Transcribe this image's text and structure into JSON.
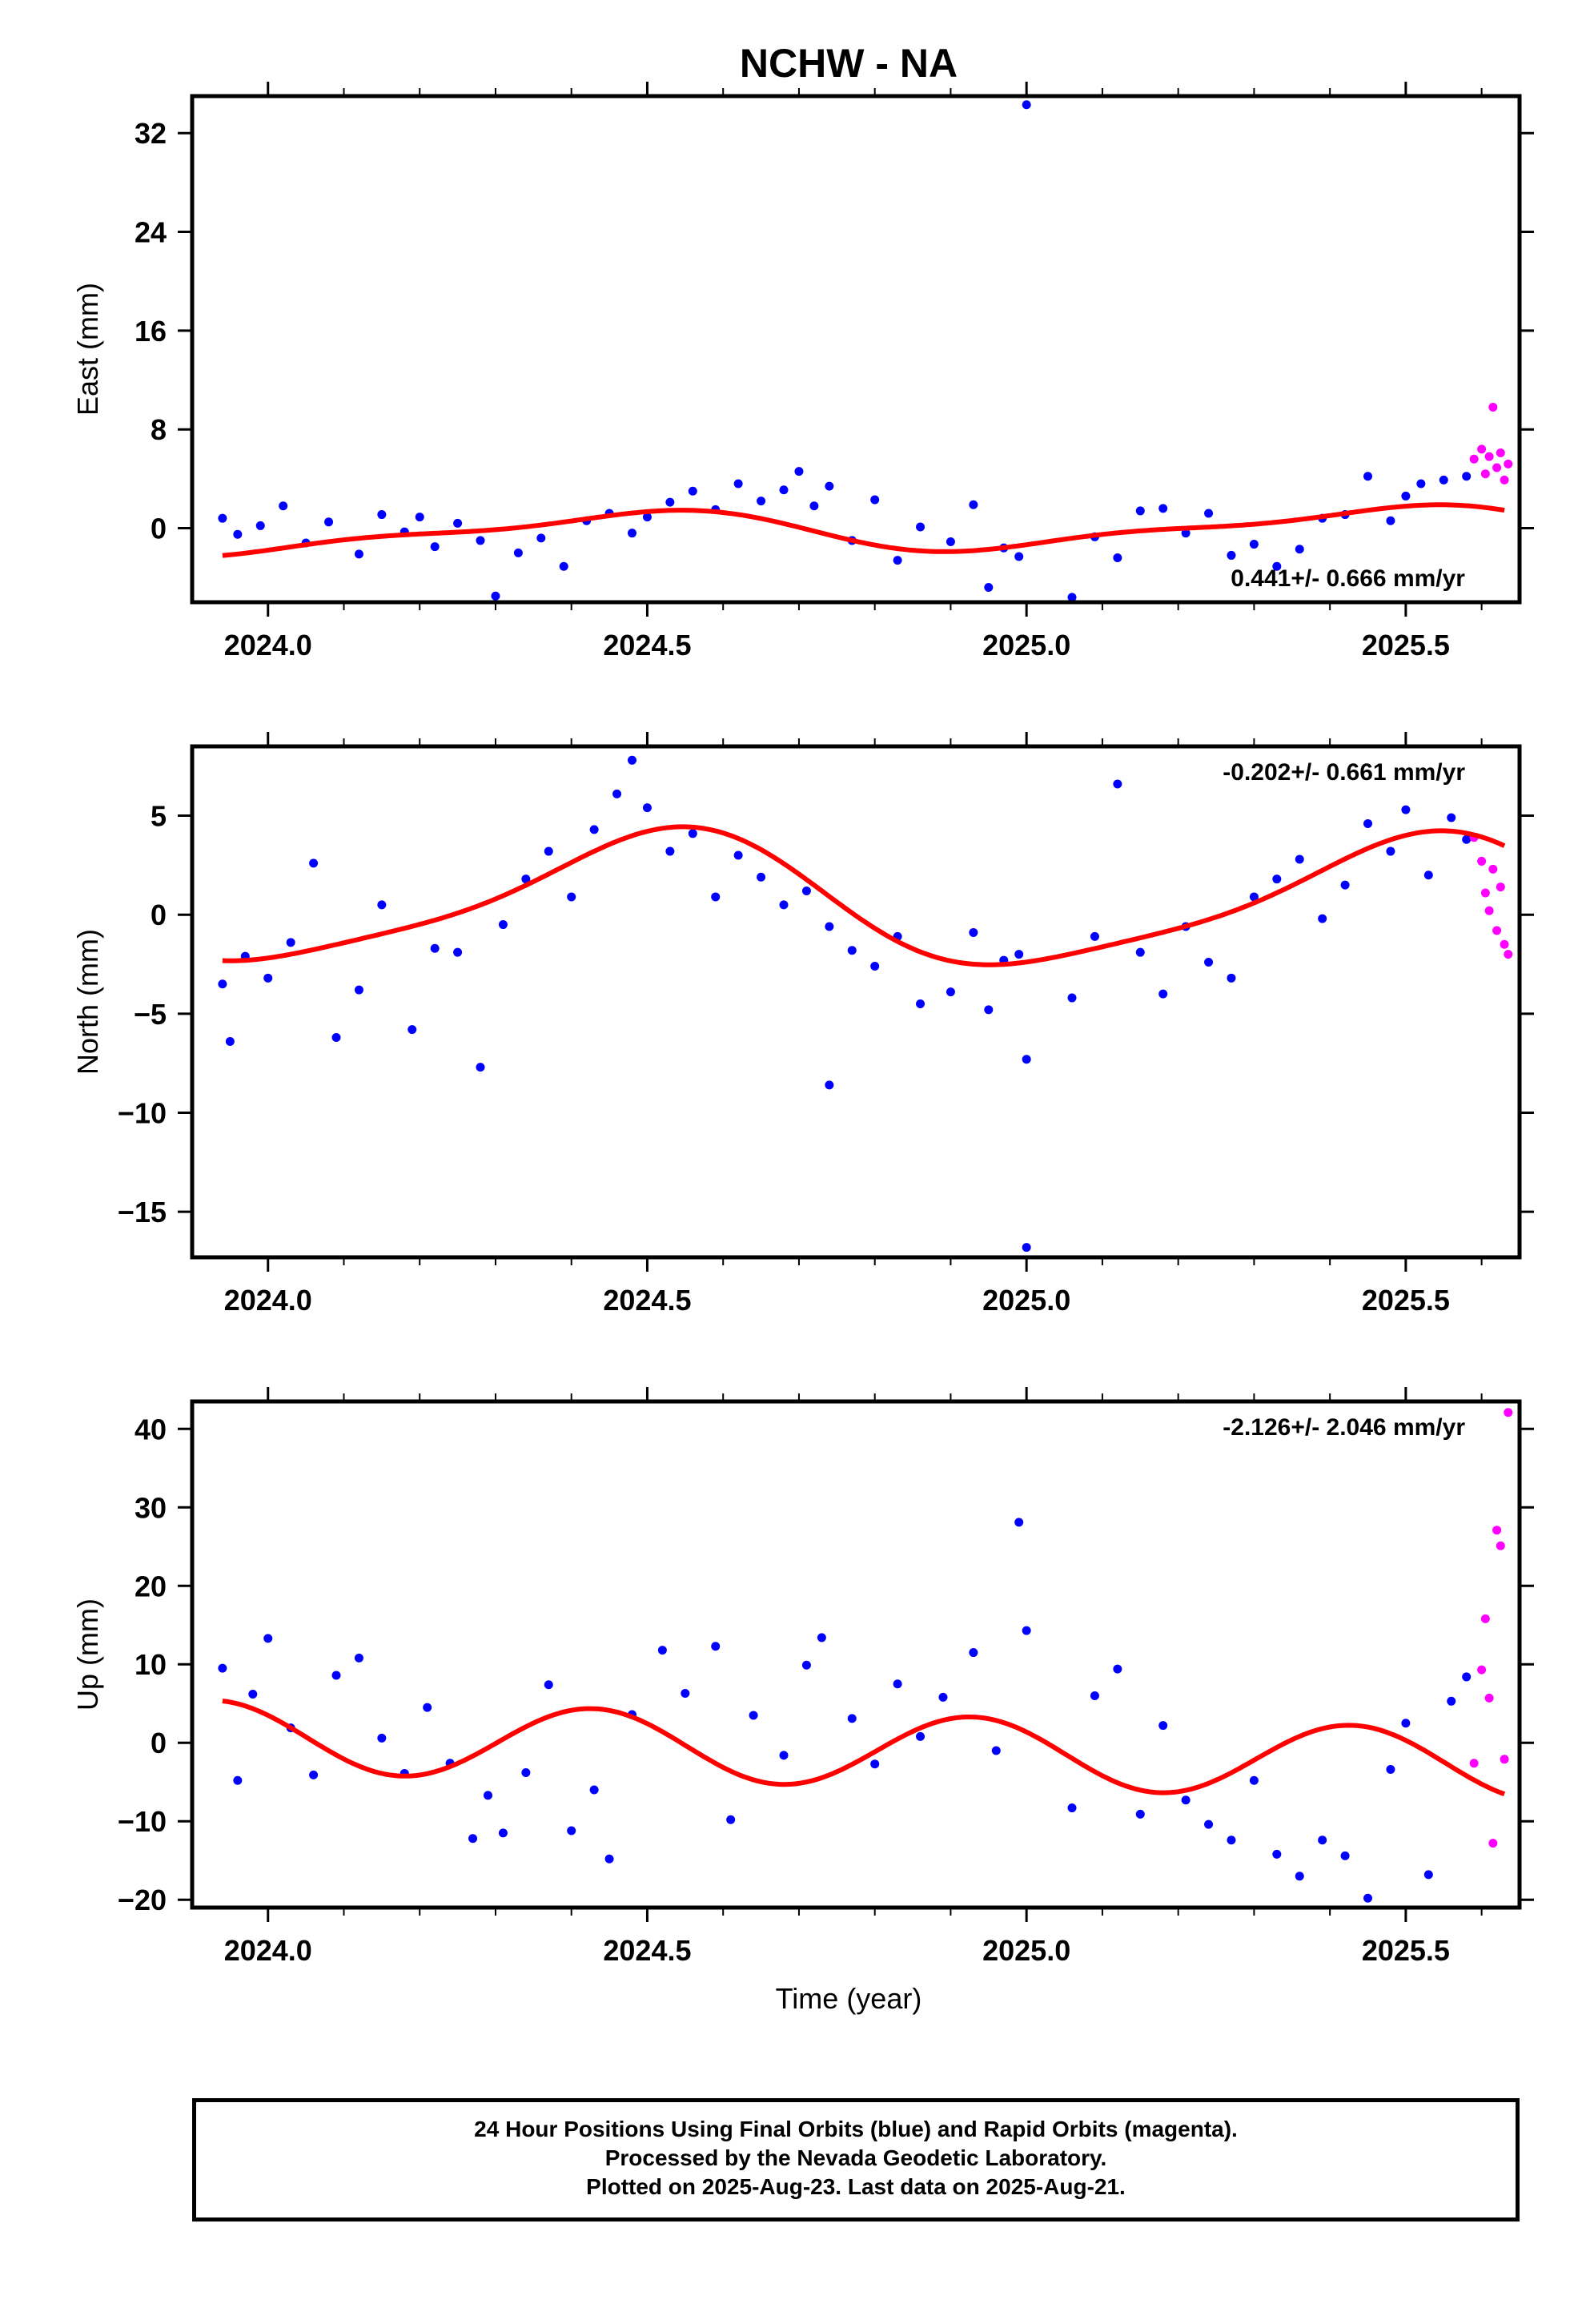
{
  "title": "NCHW - NA",
  "footer": {
    "line1": "24 Hour Positions Using Final Orbits (blue) and Rapid Orbits (magenta).",
    "line2": "Processed by the Nevada Geodetic Laboratory.",
    "line3": "Plotted on 2025-Aug-23. Last data on 2025-Aug-21."
  },
  "colors": {
    "final": "#0000ff",
    "rapid": "#ff00ff",
    "model": "#ff0000",
    "frame": "#000000"
  },
  "chart_data": [
    {
      "type": "scatter",
      "panel": "east",
      "ylabel": "East (mm)",
      "xlabel": "",
      "xlim": [
        2023.9,
        2025.65
      ],
      "ylim": [
        -6,
        35
      ],
      "yticks": [
        0,
        8,
        16,
        24,
        32
      ],
      "ytick_labels": [
        "0",
        "8",
        "16",
        "24",
        "32"
      ],
      "xticks": [
        2024.0,
        2024.5,
        2025.0,
        2025.5
      ],
      "xtick_labels": [
        "2024.0",
        "2024.5",
        "2025.0",
        "2025.5"
      ],
      "rate_label": "0.441+/- 0.666 mm/yr",
      "rate_position": "bottom-right",
      "model": {
        "offset": -0.18,
        "rate": 0.441,
        "annual_sin": 0.3,
        "annual_cos": -1.45,
        "semi_sin": 0.5,
        "semi_cos": 0.2
      },
      "series": [
        {
          "kind": "final",
          "x": [
            2023.94,
            2023.96,
            2023.99,
            2024.02,
            2024.05,
            2024.08,
            2024.12,
            2024.15,
            2024.18,
            2024.2,
            2024.22,
            2024.25,
            2024.28,
            2024.3,
            2024.33,
            2024.36,
            2024.39,
            2024.42,
            2024.45,
            2024.48,
            2024.5,
            2024.53,
            2024.56,
            2024.59,
            2024.62,
            2024.65,
            2024.68,
            2024.7,
            2024.72,
            2024.74,
            2024.77,
            2024.8,
            2024.83,
            2024.86,
            2024.9,
            2024.93,
            2024.95,
            2024.97,
            2024.99,
            2025.0,
            2025.06,
            2025.09,
            2025.12,
            2025.15,
            2025.18,
            2025.21,
            2025.24,
            2025.27,
            2025.3,
            2025.33,
            2025.36,
            2025.39,
            2025.42,
            2025.45,
            2025.48,
            2025.5,
            2025.52,
            2025.55,
            2025.58
          ],
          "y": [
            0.8,
            -0.5,
            0.2,
            1.8,
            -1.2,
            0.5,
            -2.1,
            1.1,
            -0.3,
            0.9,
            -1.5,
            0.4,
            -1.0,
            -5.5,
            -2.0,
            -0.8,
            -3.1,
            0.6,
            1.2,
            -0.4,
            0.9,
            2.1,
            3.0,
            1.5,
            3.6,
            2.2,
            3.1,
            4.6,
            1.8,
            3.4,
            -1.0,
            2.3,
            -2.6,
            0.1,
            -1.1,
            1.9,
            -4.8,
            -1.6,
            -2.3,
            34.3,
            -5.6,
            -0.7,
            -2.4,
            1.4,
            1.6,
            -0.4,
            1.2,
            -2.2,
            -1.3,
            -3.1,
            -1.7,
            0.8,
            1.1,
            4.2,
            0.6,
            2.6,
            3.6,
            3.9,
            4.2
          ]
        },
        {
          "kind": "rapid",
          "x": [
            2025.59,
            2025.6,
            2025.605,
            2025.61,
            2025.615,
            2025.62,
            2025.625,
            2025.63,
            2025.635
          ],
          "y": [
            5.6,
            6.4,
            4.4,
            5.8,
            9.8,
            4.9,
            6.1,
            3.9,
            5.2
          ]
        }
      ]
    },
    {
      "type": "scatter",
      "panel": "north",
      "ylabel": "North (mm)",
      "xlabel": "",
      "xlim": [
        2023.9,
        2025.65
      ],
      "ylim": [
        -17.3,
        8.5
      ],
      "yticks": [
        -15,
        -10,
        -5,
        0,
        5
      ],
      "ytick_labels": [
        "−15",
        "−10",
        "−5",
        "0",
        "5"
      ],
      "xticks": [
        2024.0,
        2024.5,
        2025.0,
        2025.5
      ],
      "xtick_labels": [
        "2024.0",
        "2024.5",
        "2025.0",
        "2025.5"
      ],
      "rate_label": "-0.202+/- 0.661 mm/yr",
      "rate_position": "top-right",
      "model": {
        "offset": 0.6,
        "rate": -0.202,
        "annual_sin": -0.33,
        "annual_cos": -3.25,
        "semi_sin": 0.6,
        "semi_cos": 0.3
      },
      "series": [
        {
          "kind": "final",
          "x": [
            2023.94,
            2023.95,
            2023.97,
            2024.0,
            2024.03,
            2024.06,
            2024.09,
            2024.12,
            2024.15,
            2024.19,
            2024.22,
            2024.25,
            2024.28,
            2024.31,
            2024.34,
            2024.37,
            2024.4,
            2024.43,
            2024.46,
            2024.48,
            2024.5,
            2024.53,
            2024.56,
            2024.59,
            2024.62,
            2024.65,
            2024.68,
            2024.71,
            2024.74,
            2024.74,
            2024.77,
            2024.8,
            2024.83,
            2024.86,
            2024.9,
            2024.93,
            2024.95,
            2024.97,
            2024.99,
            2025.0,
            2025.0,
            2025.06,
            2025.09,
            2025.12,
            2025.15,
            2025.18,
            2025.21,
            2025.24,
            2025.27,
            2025.3,
            2025.33,
            2025.36,
            2025.39,
            2025.42,
            2025.45,
            2025.48,
            2025.5,
            2025.53,
            2025.56,
            2025.58
          ],
          "y": [
            -3.5,
            -6.4,
            -2.1,
            -3.2,
            -1.4,
            2.6,
            -6.2,
            -3.8,
            0.5,
            -5.8,
            -1.7,
            -1.9,
            -7.7,
            -0.5,
            1.8,
            3.2,
            0.9,
            4.3,
            6.1,
            7.8,
            5.4,
            3.2,
            4.1,
            0.9,
            3.0,
            1.9,
            0.5,
            1.2,
            -0.6,
            -8.6,
            -1.8,
            -2.6,
            -1.1,
            -4.5,
            -3.9,
            -0.9,
            -4.8,
            -2.3,
            -2.0,
            -16.8,
            -7.3,
            -4.2,
            -1.1,
            6.6,
            -1.9,
            -4.0,
            -0.6,
            -2.4,
            -3.2,
            0.9,
            1.8,
            2.8,
            -0.2,
            1.5,
            4.6,
            3.2,
            5.3,
            2.0,
            4.9,
            3.8
          ]
        },
        {
          "kind": "rapid",
          "x": [
            2025.59,
            2025.6,
            2025.605,
            2025.61,
            2025.615,
            2025.62,
            2025.625,
            2025.63,
            2025.635
          ],
          "y": [
            3.9,
            2.7,
            1.1,
            0.2,
            2.3,
            -0.8,
            1.4,
            -1.5,
            -2.0
          ]
        }
      ]
    },
    {
      "type": "scatter",
      "panel": "up",
      "ylabel": "Up (mm)",
      "xlabel": "Time (year)",
      "xlim": [
        2023.9,
        2025.65
      ],
      "ylim": [
        -21,
        43.5
      ],
      "yticks": [
        -20,
        -10,
        0,
        10,
        20,
        30,
        40
      ],
      "ytick_labels": [
        "−20",
        "−10",
        "0",
        "10",
        "20",
        "30",
        "40"
      ],
      "xticks": [
        2024.0,
        2024.5,
        2025.0,
        2025.5
      ],
      "xtick_labels": [
        "2024.0",
        "2024.5",
        "2025.0",
        "2025.5"
      ],
      "rate_label": "-2.126+/- 2.046 mm/yr",
      "rate_position": "top-right",
      "model": {
        "offset": -1.0,
        "rate": -2.126,
        "annual_sin": 0.0,
        "annual_cos": 0.0,
        "semi_sin": -3.6,
        "semi_cos": 2.8
      },
      "series": [
        {
          "kind": "final",
          "x": [
            2023.94,
            2023.96,
            2023.98,
            2024.0,
            2024.03,
            2024.06,
            2024.09,
            2024.12,
            2024.15,
            2024.18,
            2024.21,
            2024.24,
            2024.27,
            2024.29,
            2024.31,
            2024.34,
            2024.37,
            2024.4,
            2024.43,
            2024.45,
            2024.48,
            2024.52,
            2024.55,
            2024.59,
            2024.61,
            2024.64,
            2024.68,
            2024.71,
            2024.73,
            2024.77,
            2024.8,
            2024.83,
            2024.86,
            2024.89,
            2024.93,
            2024.96,
            2024.99,
            2025.0,
            2025.06,
            2025.09,
            2025.12,
            2025.15,
            2025.18,
            2025.21,
            2025.24,
            2025.27,
            2025.3,
            2025.33,
            2025.36,
            2025.39,
            2025.42,
            2025.45,
            2025.48,
            2025.5,
            2025.53,
            2025.56,
            2025.58
          ],
          "y": [
            9.5,
            -4.8,
            6.2,
            13.3,
            1.9,
            -4.1,
            8.6,
            10.8,
            0.6,
            -3.9,
            4.5,
            -2.6,
            -12.2,
            -6.7,
            -11.5,
            -3.8,
            7.4,
            -11.2,
            -6.0,
            -14.8,
            3.6,
            11.8,
            6.3,
            12.3,
            -9.8,
            3.5,
            -1.6,
            9.9,
            13.4,
            3.1,
            -2.7,
            7.5,
            0.8,
            5.8,
            11.5,
            -1.0,
            28.1,
            14.3,
            -8.3,
            6.0,
            9.4,
            -9.1,
            2.2,
            -7.3,
            -10.4,
            -12.4,
            -4.8,
            -14.2,
            -17.0,
            -12.4,
            -14.4,
            -19.8,
            -3.4,
            2.5,
            -16.8,
            5.3,
            8.4
          ]
        },
        {
          "kind": "rapid",
          "x": [
            2025.59,
            2025.6,
            2025.605,
            2025.61,
            2025.615,
            2025.62,
            2025.625,
            2025.63,
            2025.635
          ],
          "y": [
            -2.6,
            9.3,
            15.8,
            5.7,
            -12.8,
            27.1,
            25.1,
            -2.1,
            42.1
          ]
        }
      ]
    }
  ]
}
